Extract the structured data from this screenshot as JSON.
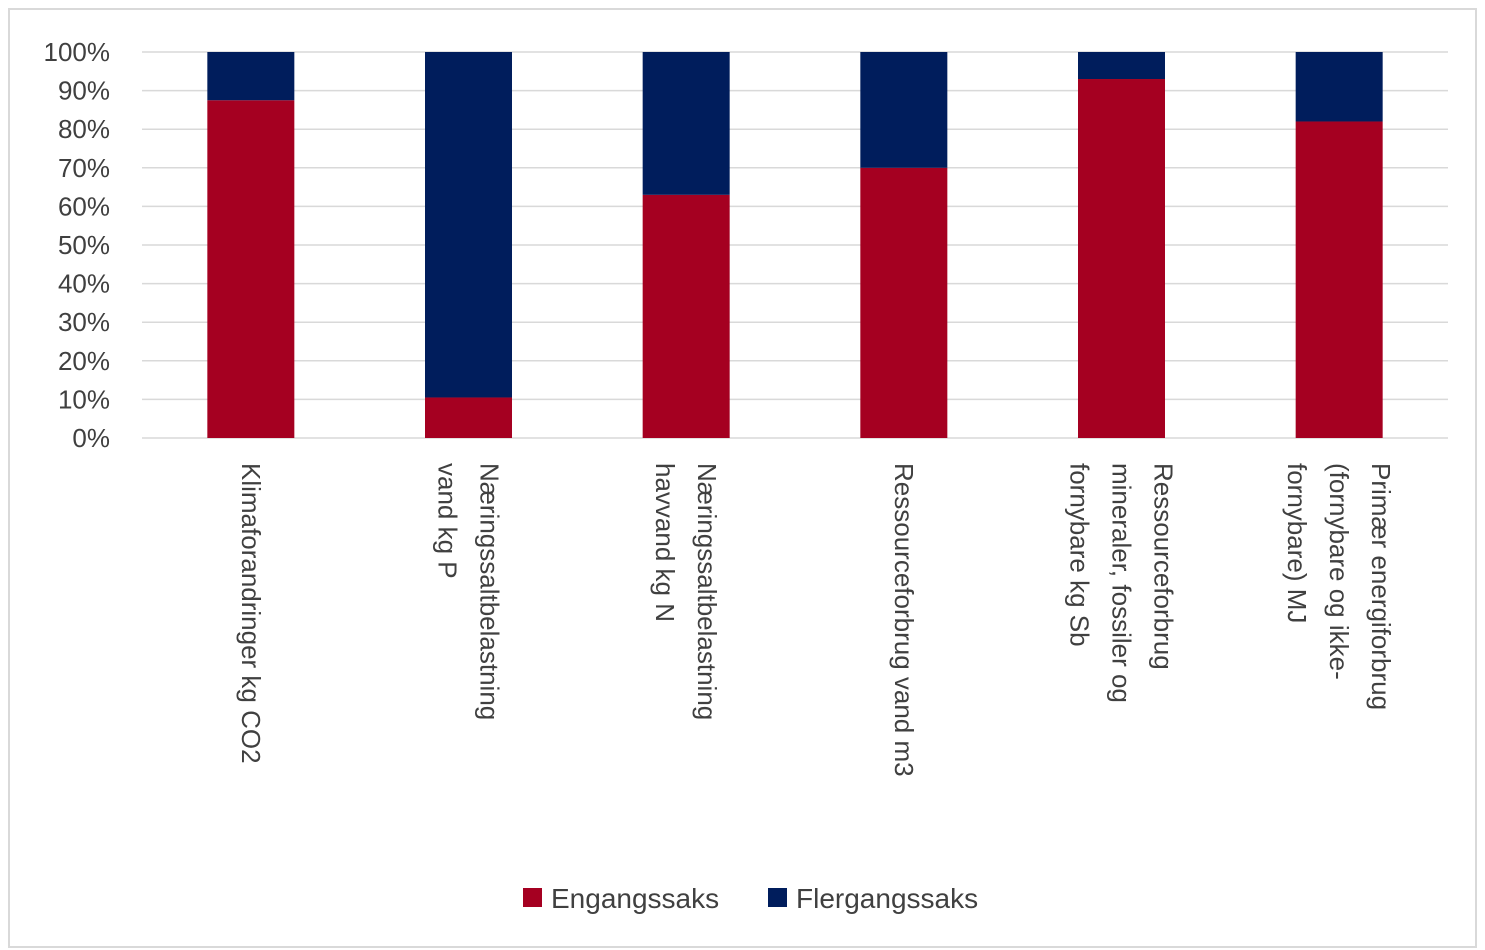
{
  "chart_data": {
    "type": "bar",
    "stacked": true,
    "percent_stacked": true,
    "categories": [
      [
        "Klimaforandringer kg CO2"
      ],
      [
        "Næringssaltbelastning",
        "vand kg P"
      ],
      [
        "Næringssaltbelastning",
        "havvand kg N"
      ],
      [
        "Ressourceforbrug vand m3"
      ],
      [
        "Ressourceforbrug",
        "mineraler, fossiler og",
        "fornybare kg Sb"
      ],
      [
        "Primær energiforbrug",
        "(fornybare og ikke-",
        "fornybare) MJ"
      ]
    ],
    "series": [
      {
        "name": "Engangssaks",
        "color": "#a50021",
        "values": [
          87.5,
          10.5,
          63,
          70,
          93,
          82
        ]
      },
      {
        "name": "Flergangssaks",
        "color": "#001d5c",
        "values": [
          12.5,
          89.5,
          37,
          30,
          7,
          18
        ]
      }
    ],
    "y_ticks": [
      "0%",
      "10%",
      "20%",
      "30%",
      "40%",
      "50%",
      "60%",
      "70%",
      "80%",
      "90%",
      "100%"
    ],
    "ylim": [
      0,
      100
    ],
    "grid": true,
    "legend_position": "bottom"
  }
}
